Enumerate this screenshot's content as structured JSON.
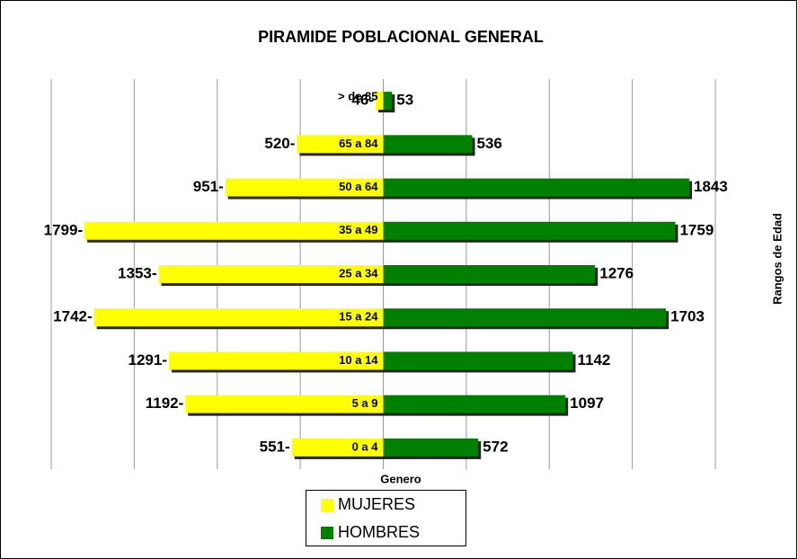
{
  "chart_data": {
    "type": "pyramid",
    "title": "PIRAMIDE POBLACIONAL GENERAL",
    "x_label": "Genero",
    "y_label": "Rangos de Edad",
    "categories": [
      "0 a 4",
      "5 a 9",
      "10 a 14",
      "15 a 24",
      "25 a 34",
      "35 a 49",
      "50 a 64",
      "65 a 84",
      "> de 85"
    ],
    "series": [
      {
        "name": "MUJERES",
        "color": "#ffff00",
        "side": "left",
        "values": [
          551,
          1192,
          1291,
          1742,
          1353,
          1799,
          951,
          520,
          46
        ],
        "value_labels": [
          "551-",
          "1192-",
          "1291-",
          "1742-",
          "1353-",
          "1799-",
          "951-",
          "520-",
          "46-"
        ]
      },
      {
        "name": "HOMBRES",
        "color": "#008000",
        "side": "right",
        "values": [
          572,
          1097,
          1142,
          1703,
          1276,
          1759,
          1843,
          536,
          53
        ]
      }
    ],
    "xlim": [
      -2000,
      2000
    ],
    "xticks": [
      -2000,
      -1500,
      -1000,
      -500,
      0,
      500,
      1000,
      1500,
      2000
    ],
    "grid": true
  }
}
